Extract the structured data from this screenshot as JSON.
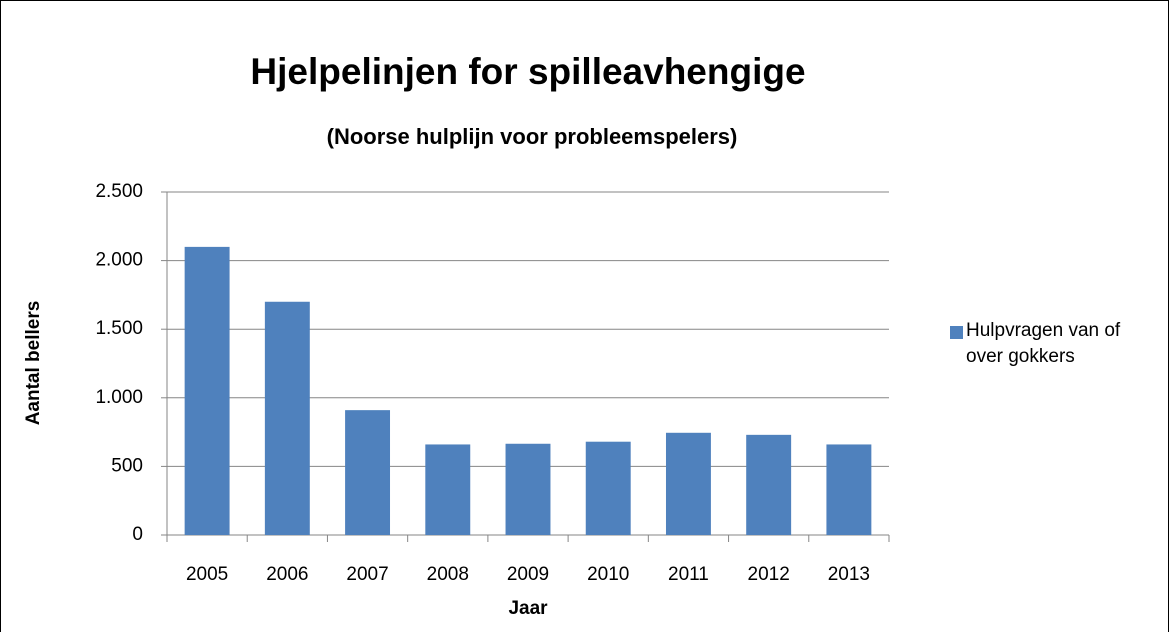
{
  "chart_data": {
    "type": "bar",
    "title": "Hjelpelinjen for spilleavhengige",
    "subtitle": "(Noorse hulplijn voor probleemspelers)",
    "x_label": "Jaar",
    "y_label": "Aantal bellers",
    "categories": [
      "2005",
      "2006",
      "2007",
      "2008",
      "2009",
      "2010",
      "2011",
      "2012",
      "2013"
    ],
    "series": [
      {
        "name": "Hulpvragen van of over gokkers",
        "color": "#4f81bd",
        "values": [
          2100,
          1700,
          910,
          660,
          665,
          680,
          745,
          730,
          660
        ]
      }
    ],
    "ylim": [
      0,
      2500
    ],
    "yticks": [
      0,
      500,
      {
        "value": 1000,
        "label": "1.000"
      },
      {
        "value": 1500,
        "label": "1.500"
      },
      {
        "value": 2000,
        "label": "2.000"
      },
      {
        "value": 2500,
        "label": "2.500"
      }
    ],
    "grid": true,
    "legend": "right"
  }
}
